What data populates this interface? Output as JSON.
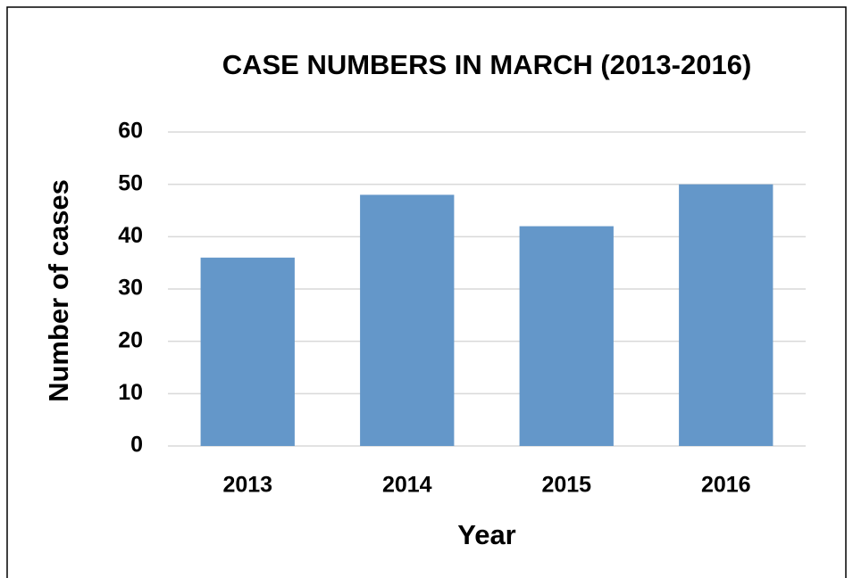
{
  "chart_data": {
    "type": "bar",
    "title": "CASE NUMBERS IN MARCH (2013-2016)",
    "x_label": "Year",
    "y_label": "Number of cases",
    "categories": [
      "2013",
      "2014",
      "2015",
      "2016"
    ],
    "values": [
      36,
      48,
      42,
      50
    ],
    "color": "#6497c9",
    "ylim": [
      0,
      60
    ],
    "yticks": [
      0,
      10,
      20,
      30,
      40,
      50,
      60
    ],
    "grid": true
  }
}
